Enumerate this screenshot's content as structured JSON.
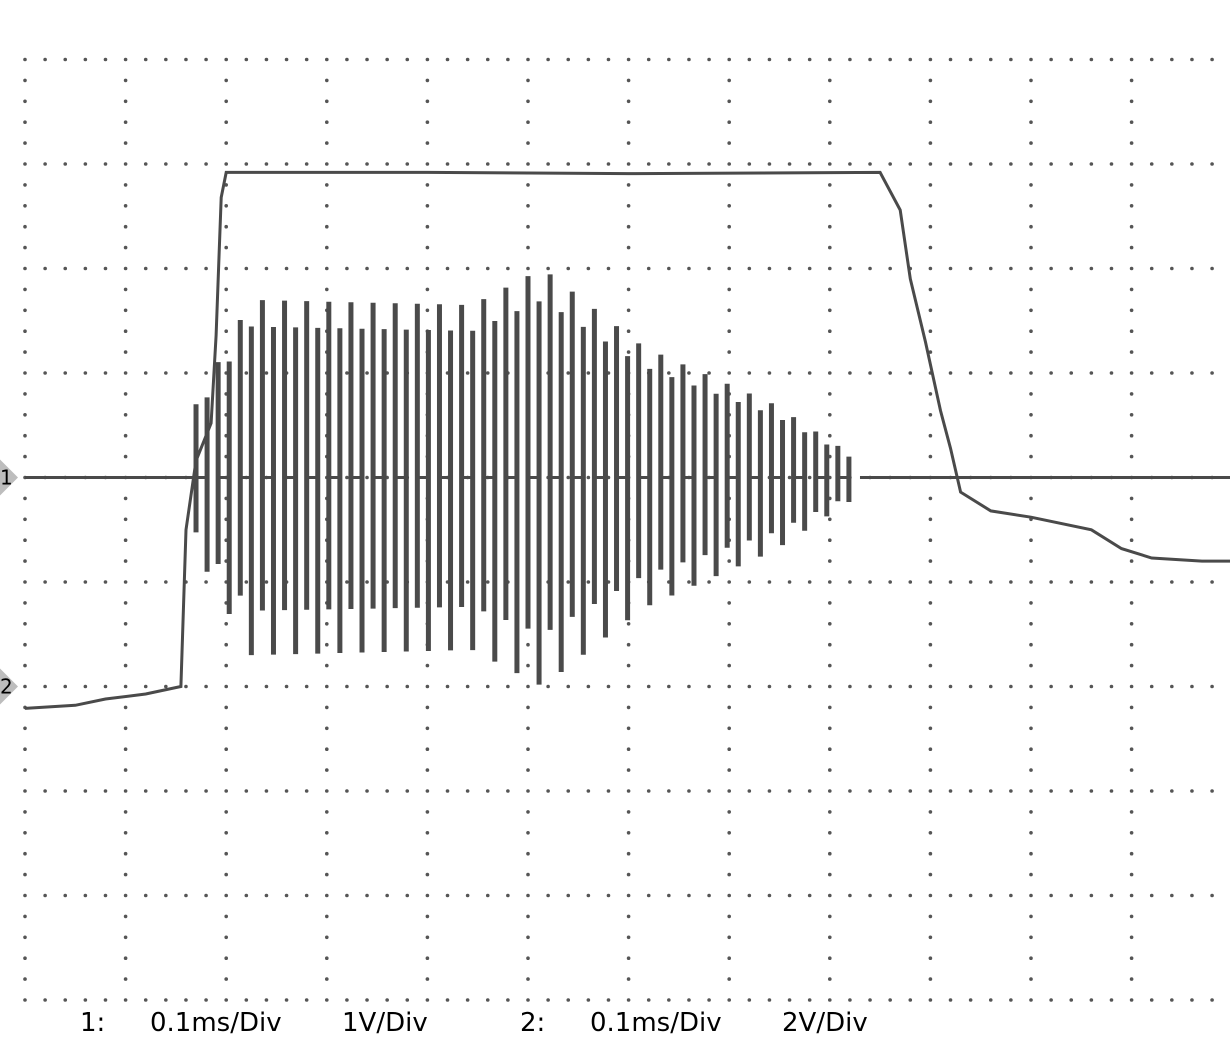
{
  "chart_data": {
    "type": "line",
    "title": "",
    "xlabel": "",
    "ylabel": "",
    "grid": true,
    "grid_divisions": {
      "x": 12,
      "y": 9
    },
    "channels": [
      {
        "id": "1",
        "marker_label": "1",
        "time_div_label": "0.1ms/Div",
        "volt_div_label": "1V/Div",
        "reference_level_div": 5.0
      },
      {
        "id": "2",
        "marker_label": "2",
        "time_div_label": "0.1ms/Div",
        "volt_div_label": "2V/Div",
        "reference_level_div": 3.0
      }
    ],
    "series": [
      {
        "channel": "2",
        "description_points": [
          [
            0.0,
            -0.35
          ],
          [
            0.5,
            -0.3
          ],
          [
            0.8,
            -0.2
          ],
          [
            1.2,
            -0.12
          ],
          [
            1.55,
            0.0
          ],
          [
            1.6,
            2.5
          ],
          [
            1.7,
            3.6
          ],
          [
            1.85,
            4.2
          ],
          [
            1.9,
            5.6
          ],
          [
            1.95,
            7.8
          ],
          [
            2.0,
            8.2
          ],
          [
            2.5,
            8.2
          ],
          [
            4.0,
            8.2
          ],
          [
            6.0,
            8.18
          ],
          [
            8.5,
            8.2
          ],
          [
            8.7,
            7.6
          ],
          [
            8.8,
            6.5
          ],
          [
            8.95,
            5.5
          ],
          [
            9.1,
            4.4
          ],
          [
            9.2,
            3.8
          ],
          [
            9.3,
            3.1
          ],
          [
            9.6,
            2.8
          ],
          [
            10.0,
            2.7
          ],
          [
            10.6,
            2.5
          ],
          [
            10.9,
            2.2
          ],
          [
            11.2,
            2.05
          ],
          [
            11.7,
            2.0
          ],
          [
            12.0,
            2.0
          ]
        ]
      },
      {
        "channel": "1",
        "burst": {
          "start_div": 1.7,
          "end_div": 8.3,
          "cycles": 30,
          "envelope_div": [
            [
              1.7,
              0.6
            ],
            [
              2.3,
              1.7
            ],
            [
              4.5,
              1.65
            ],
            [
              5.2,
              2.0
            ],
            [
              6.2,
              1.25
            ],
            [
              7.5,
              0.7
            ],
            [
              8.3,
              0.2
            ]
          ]
        }
      }
    ]
  },
  "caption": {
    "ch1_label": "1:",
    "ch1_time": "0.1ms/Div",
    "ch1_volt": "1V/Div",
    "ch2_label": "2:",
    "ch2_time": "0.1ms/Div",
    "ch2_volt": "2V/Div"
  }
}
